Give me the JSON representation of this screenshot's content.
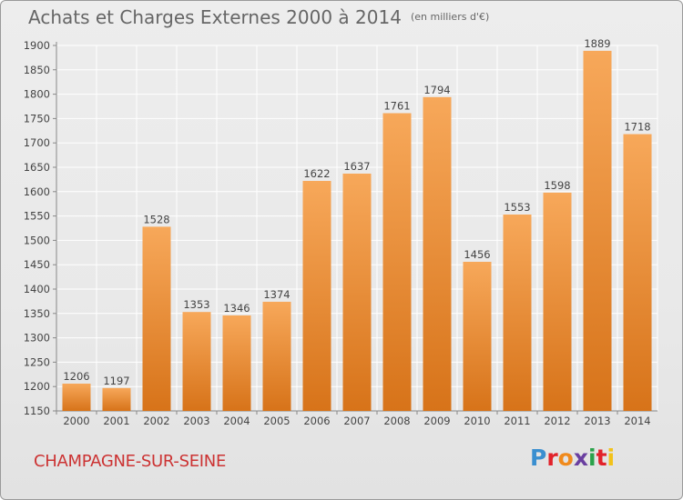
{
  "title": "Achats et Charges Externes 2000 à 2014",
  "subtitle": "(en milliers d'€)",
  "city": "CHAMPAGNE-SUR-SEINE",
  "logo": {
    "letters": [
      "P",
      "r",
      "o",
      "x",
      "i",
      "t",
      "i"
    ]
  },
  "colors": {
    "bar_light": "#f7a85a",
    "bar_dark": "#d77319",
    "title": "#666666",
    "city": "#cc3333",
    "grid": "#ffffff"
  },
  "chart_data": {
    "type": "bar",
    "title": "Achats et Charges Externes 2000 à 2014",
    "categories": [
      "2000",
      "2001",
      "2002",
      "2003",
      "2004",
      "2005",
      "2006",
      "2007",
      "2008",
      "2009",
      "2010",
      "2011",
      "2012",
      "2013",
      "2014"
    ],
    "values": [
      1206,
      1197,
      1528,
      1353,
      1346,
      1374,
      1622,
      1637,
      1761,
      1794,
      1456,
      1553,
      1598,
      1889,
      1718
    ],
    "ylim": [
      1150,
      1900
    ],
    "yticks": [
      1150,
      1200,
      1250,
      1300,
      1350,
      1400,
      1450,
      1500,
      1550,
      1600,
      1650,
      1700,
      1750,
      1800,
      1850,
      1900
    ],
    "grid": true,
    "xlabel": "",
    "ylabel": ""
  }
}
